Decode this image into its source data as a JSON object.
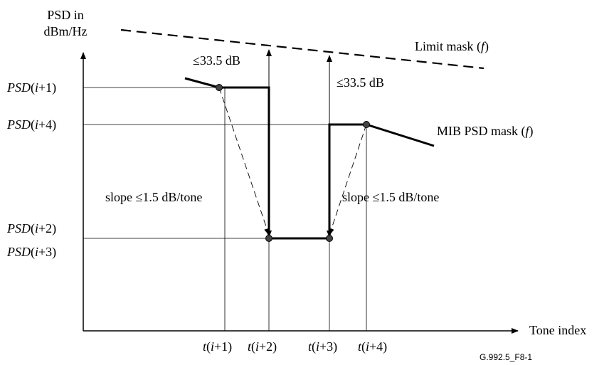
{
  "axes": {
    "y_label_line1": "PSD in",
    "y_label_line2": "dBm/Hz",
    "x_label": "Tone index"
  },
  "y_ticks": [
    {
      "italic": "PSD",
      "plain": "(",
      "idx_italic": "i",
      "idx_plain": "+1)"
    },
    {
      "italic": "PSD",
      "plain": "(",
      "idx_italic": "i",
      "idx_plain": "+4)"
    },
    {
      "italic": "PSD",
      "plain": "(",
      "idx_italic": "i",
      "idx_plain": "+2)"
    },
    {
      "italic": "PSD",
      "plain": "(",
      "idx_italic": "i",
      "idx_plain": "+3)"
    }
  ],
  "x_ticks": [
    {
      "italic": "t",
      "plain": "(",
      "idx_italic": "i",
      "idx_plain": "+1)"
    },
    {
      "italic": "t",
      "plain": "(",
      "idx_italic": "i",
      "idx_plain": "+2)"
    },
    {
      "italic": "t",
      "plain": "(",
      "idx_italic": "i",
      "idx_plain": "+3)"
    },
    {
      "italic": "t",
      "plain": "(",
      "idx_italic": "i",
      "idx_plain": "+4)"
    }
  ],
  "annotations": {
    "delta_left": "≤33.5 dB",
    "delta_right": "≤33.5 dB",
    "slope_left": "slope ≤1.5 dB/tone",
    "slope_right": "slope ≤1.5 dB/tone",
    "limit_mask_text": "Limit mask (",
    "limit_mask_f": "f",
    "limit_mask_close": ")",
    "mib_mask_text": "MIB PSD mask (",
    "mib_mask_f": "f",
    "mib_mask_close": ")"
  },
  "figure_id": "G.992.5_F8-1"
}
